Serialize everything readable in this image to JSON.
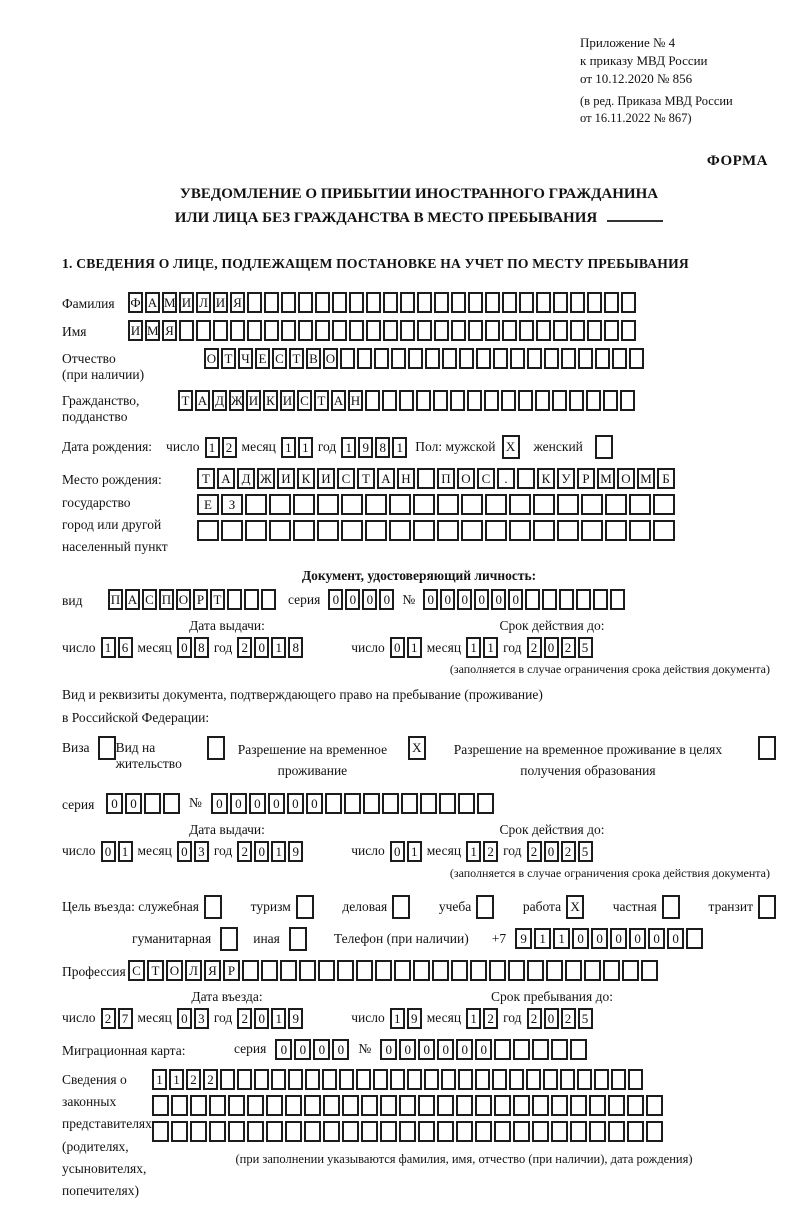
{
  "header": {
    "line1": "Приложение № 4",
    "line2": "к приказу МВД России",
    "line3": "от 10.12.2020 № 856",
    "line4": "(в ред. Приказа МВД России",
    "line5": "от 16.11.2022 № 867)",
    "forma": "ФОРМА"
  },
  "title": {
    "line1": "УВЕДОМЛЕНИЕ О ПРИБЫТИИ ИНОСТРАННОГО ГРАЖДАНИНА",
    "line2": "ИЛИ ЛИЦА БЕЗ ГРАЖДАНСТВА В МЕСТО ПРЕБЫВАНИЯ"
  },
  "section1": {
    "heading": "1. СВЕДЕНИЯ О ЛИЦЕ, ПОДЛЕЖАЩЕМ ПОСТАНОВКЕ НА УЧЕТ ПО МЕСТУ ПРЕБЫВАНИЯ"
  },
  "common": {
    "day": "число",
    "month": "месяц",
    "year": "год",
    "series": "серия",
    "num": "№"
  },
  "person": {
    "surname_label": "Фамилия",
    "surname": {
      "value": "ФАМИЛИЯ",
      "count": 30
    },
    "name_label": "Имя",
    "name": {
      "value": "ИМЯ",
      "count": 30
    },
    "patronymic_label": "Отчество",
    "patronymic_note": "(при наличии)",
    "patronymic": {
      "value": "ОТЧЕСТВО",
      "count": 26
    },
    "citizenship_label1": "Гражданство,",
    "citizenship_label2": "подданство",
    "citizenship": {
      "value": "ТАДЖИКИСТАН",
      "count": 27
    },
    "birth_date_label": "Дата рождения:",
    "birth_day": {
      "value": "12",
      "count": 2
    },
    "birth_month": {
      "value": "11",
      "count": 2
    },
    "birth_year": {
      "value": "1981",
      "count": 4
    },
    "sex_label": "Пол: мужской",
    "sex_male": {
      "value": "X",
      "count": 1
    },
    "female_label": "женский",
    "sex_female": {
      "value": "",
      "count": 1
    },
    "birth_place_label1": "Место рождения:",
    "birth_place_label2": "государство",
    "birth_place_label3": "город или другой",
    "birth_place_label4": "населенный пункт",
    "birth_place_row1": {
      "value": "ТАДЖИКИСТАН ПОС. КУРМОМБ",
      "count": 24
    },
    "birth_place_row2": {
      "value": "ЕЗ",
      "count": 20
    },
    "birth_place_row3": {
      "value": "",
      "count": 20
    }
  },
  "identity_doc": {
    "heading": "Документ, удостоверяющий личность:",
    "kind_label": "вид",
    "kind": {
      "value": "ПАСПОРТ",
      "count": 10
    },
    "series": {
      "value": "0000",
      "count": 4
    },
    "number": {
      "value": "000000",
      "count": 12
    },
    "issue_head": "Дата выдачи:",
    "issue_day": {
      "value": "16",
      "count": 2
    },
    "issue_month": {
      "value": "08",
      "count": 2
    },
    "issue_year": {
      "value": "2018",
      "count": 4
    },
    "expiry_head": "Срок действия до:",
    "expiry_day": {
      "value": "01",
      "count": 2
    },
    "expiry_month": {
      "value": "11",
      "count": 2
    },
    "expiry_year": {
      "value": "2025",
      "count": 4
    },
    "expiry_note": "(заполняется в случае ограничения срока действия документа)"
  },
  "residence_doc": {
    "intro1": "Вид и реквизиты документа, подтверждающего право на пребывание (проживание)",
    "intro2": "в Российской Федерации:",
    "visa_label": "Виза",
    "visa": {
      "value": "",
      "count": 1
    },
    "residence_permit_label": "Вид на жительство",
    "residence_permit": {
      "value": "",
      "count": 1
    },
    "temp_permit_label1": "Разрешение на временное",
    "temp_permit_label2": "проживание",
    "temp_permit": {
      "value": "X",
      "count": 1
    },
    "edu_permit_label1": "Разрешение на временное",
    "edu_permit_label2": "проживание в целях",
    "edu_permit_label3": "получения образования",
    "edu_permit": {
      "value": "",
      "count": 1
    },
    "series": {
      "value": "00",
      "count": 4
    },
    "number": {
      "value": "000000",
      "count": 15
    },
    "issue_head": "Дата выдачи:",
    "issue_day": {
      "value": "01",
      "count": 2
    },
    "issue_month": {
      "value": "03",
      "count": 2
    },
    "issue_year": {
      "value": "2019",
      "count": 4
    },
    "expiry_head": "Срок действия до:",
    "expiry_day": {
      "value": "01",
      "count": 2
    },
    "expiry_month": {
      "value": "12",
      "count": 2
    },
    "expiry_year": {
      "value": "2025",
      "count": 4
    },
    "expiry_note": "(заполняется в случае ограничения срока действия документа)"
  },
  "visit": {
    "purpose_label": "Цель въезда: служебная",
    "opt_official": {
      "value": "",
      "count": 1
    },
    "opt_tourism_label": "туризм",
    "opt_tourism": {
      "value": "",
      "count": 1
    },
    "opt_business_label": "деловая",
    "opt_business": {
      "value": "",
      "count": 1
    },
    "opt_study_label": "учеба",
    "opt_study": {
      "value": "",
      "count": 1
    },
    "opt_work_label": "работа",
    "opt_work": {
      "value": "X",
      "count": 1
    },
    "opt_private_label": "частная",
    "opt_private": {
      "value": "",
      "count": 1
    },
    "opt_transit_label": "транзит",
    "opt_transit": {
      "value": "",
      "count": 1
    },
    "opt_humanitarian_label": "гуманитарная",
    "opt_humanitarian": {
      "value": "",
      "count": 1
    },
    "opt_other_label": "иная",
    "opt_other": {
      "value": "",
      "count": 1
    },
    "phone_label": "Телефон (при наличии)",
    "phone_prefix": "+7",
    "phone": {
      "value": "911000000",
      "count": 10
    },
    "profession_label": "Профессия",
    "profession": {
      "value": "СТОЛЯР",
      "count": 28
    },
    "entry_head": "Дата въезда:",
    "entry_day": {
      "value": "27",
      "count": 2
    },
    "entry_month": {
      "value": "03",
      "count": 2
    },
    "entry_year": {
      "value": "2019",
      "count": 4
    },
    "stay_head": "Срок пребывания до:",
    "stay_day": {
      "value": "19",
      "count": 2
    },
    "stay_month": {
      "value": "12",
      "count": 2
    },
    "stay_year": {
      "value": "2025",
      "count": 4
    },
    "migration_card_label": "Миграционная карта:",
    "mc_series": {
      "value": "0000",
      "count": 4
    },
    "mc_number": {
      "value": "000000",
      "count": 11
    }
  },
  "representatives": {
    "label1": "Сведения о",
    "label2": "законных",
    "label3": "представителях",
    "label4": "(родителях,",
    "label5": "усыновителях,",
    "label6": "попечителях)",
    "row1": {
      "value": "1122",
      "count": 29
    },
    "row2": {
      "value": "",
      "count": 27
    },
    "row3": {
      "value": "",
      "count": 27
    },
    "note": "(при заполнении указываются фамилия, имя, отчество (при наличии), дата рождения)"
  }
}
